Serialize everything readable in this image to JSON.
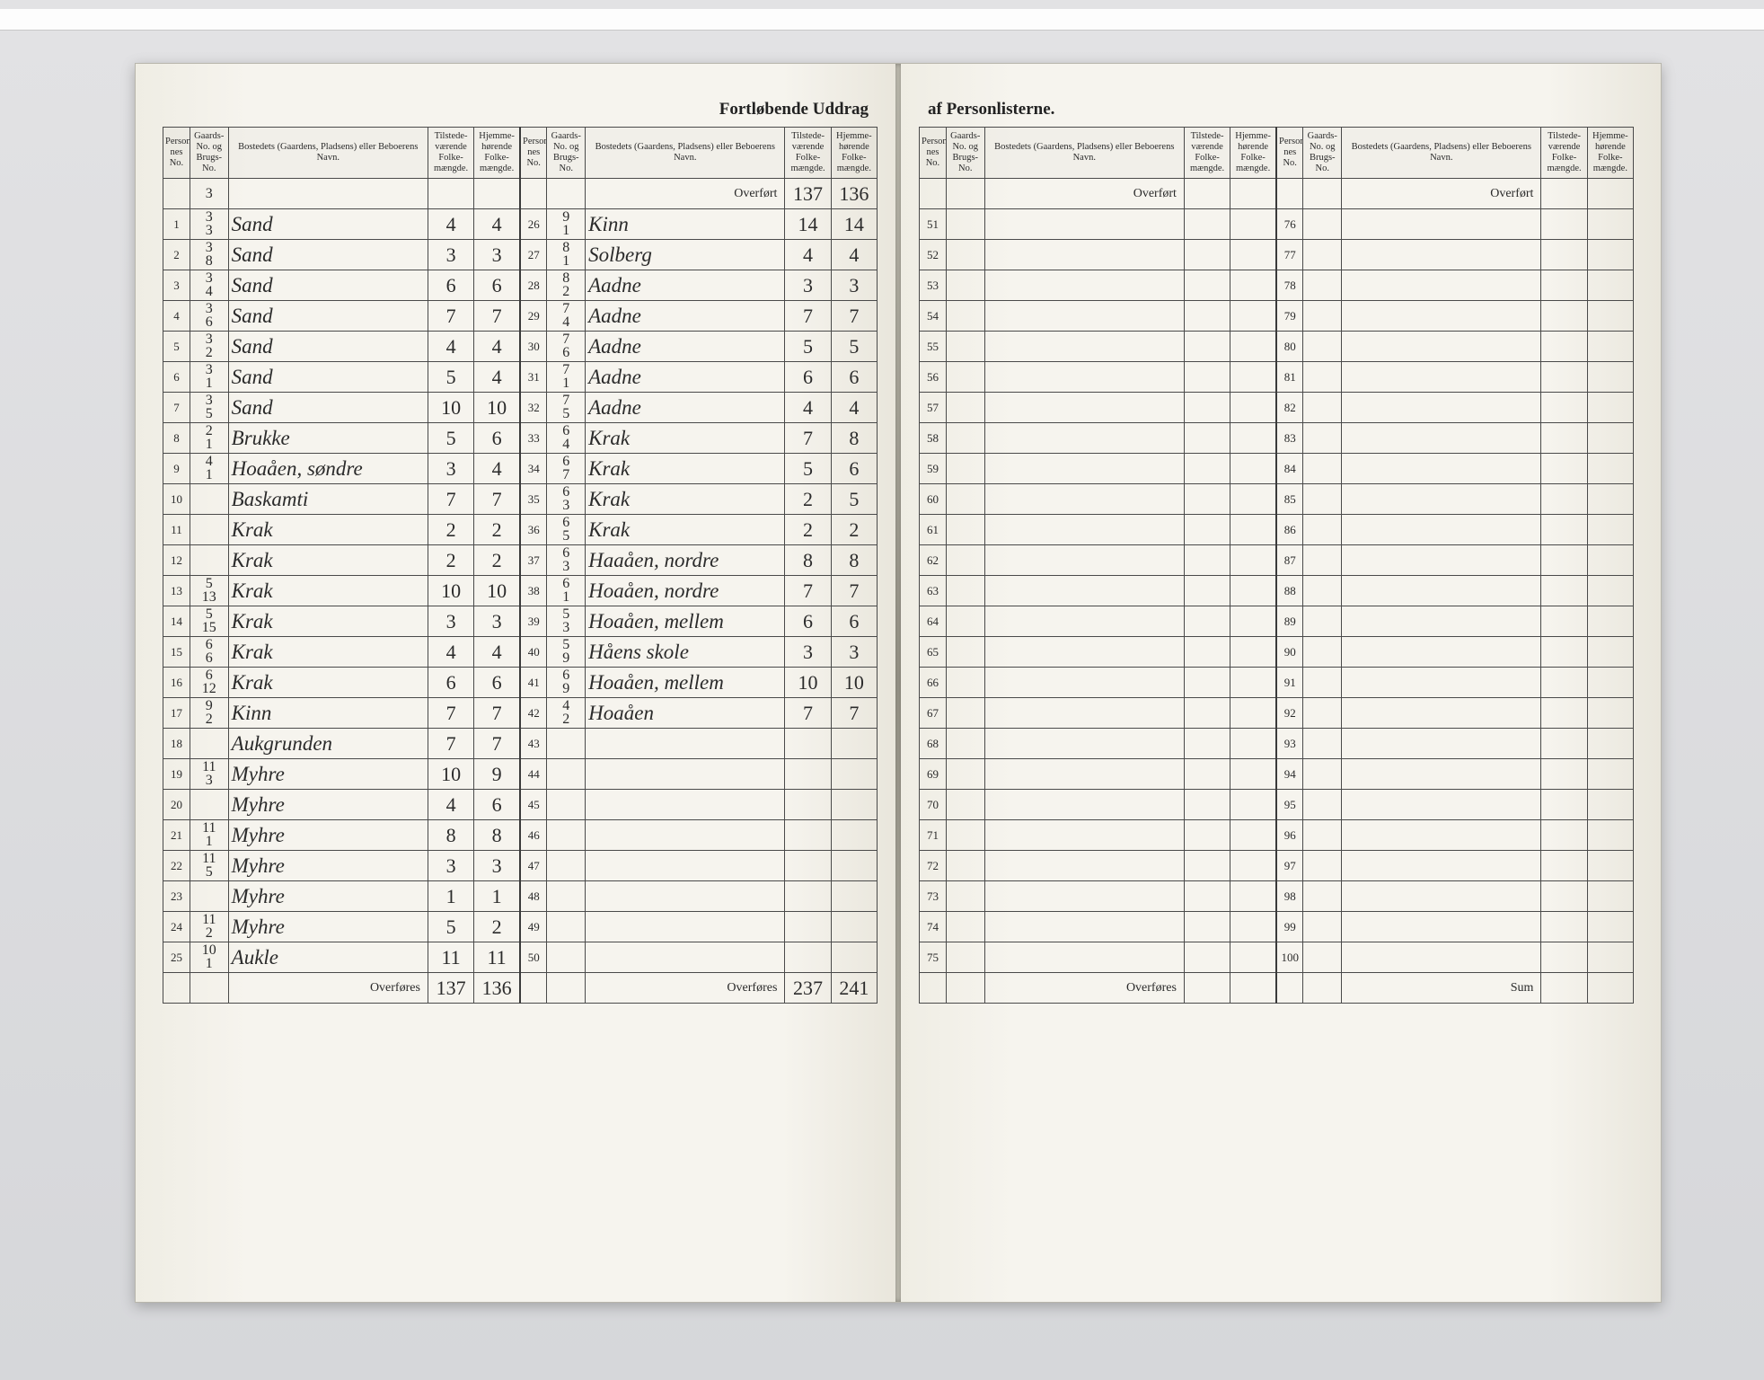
{
  "title_left": "Fortløbende Uddrag",
  "title_right": "af Personlisterne.",
  "headers": {
    "idx": "Personliste-\nnes No.",
    "gno": "Gaards-\nNo.\nog\nBrugs-\nNo.",
    "name": "Bostedets (Gaardens, Pladsens) eller\nBeboerens Navn.",
    "t": "Tilstede-\nværende\nFolke-\nmængde.",
    "h": "Hjemme-\nhørende\nFolke-\nmængde."
  },
  "overfort": "Overført",
  "overfores": "Overføres",
  "sum": "Sum",
  "left_block_a": [
    {
      "i": "1",
      "g": "3/3",
      "n": "Sand",
      "t": "4",
      "h": "4"
    },
    {
      "i": "2",
      "g": "3/8",
      "n": "Sand",
      "t": "3",
      "h": "3"
    },
    {
      "i": "3",
      "g": "3/4",
      "n": "Sand",
      "t": "6",
      "h": "6"
    },
    {
      "i": "4",
      "g": "3/6",
      "n": "Sand",
      "t": "7",
      "h": "7"
    },
    {
      "i": "5",
      "g": "3/2",
      "n": "Sand",
      "t": "4",
      "h": "4"
    },
    {
      "i": "6",
      "g": "3/1",
      "n": "Sand",
      "t": "5",
      "h": "4"
    },
    {
      "i": "7",
      "g": "3/5",
      "n": "Sand",
      "t": "10",
      "h": "10"
    },
    {
      "i": "8",
      "g": "2/1",
      "n": "Brukke",
      "t": "5",
      "h": "6"
    },
    {
      "i": "9",
      "g": "4/1",
      "n": "Hoaåen, søndre",
      "t": "3",
      "h": "4"
    },
    {
      "i": "10",
      "g": "",
      "n": "Baskamti",
      "t": "7",
      "h": "7"
    },
    {
      "i": "11",
      "g": "",
      "n": "Krak",
      "t": "2",
      "h": "2"
    },
    {
      "i": "12",
      "g": "",
      "n": "Krak",
      "t": "2",
      "h": "2"
    },
    {
      "i": "13",
      "g": "5/13",
      "n": "Krak",
      "t": "10",
      "h": "10"
    },
    {
      "i": "14",
      "g": "5/15",
      "n": "Krak",
      "t": "3",
      "h": "3"
    },
    {
      "i": "15",
      "g": "6/6",
      "n": "Krak",
      "t": "4",
      "h": "4"
    },
    {
      "i": "16",
      "g": "6/12",
      "n": "Krak",
      "t": "6",
      "h": "6"
    },
    {
      "i": "17",
      "g": "9/2",
      "n": "Kinn",
      "t": "7",
      "h": "7"
    },
    {
      "i": "18",
      "g": "",
      "n": "Aukgrunden",
      "t": "7",
      "h": "7"
    },
    {
      "i": "19",
      "g": "11/3",
      "n": "Myhre",
      "t": "10",
      "h": "9"
    },
    {
      "i": "20",
      "g": "",
      "n": "Myhre",
      "t": "4",
      "h": "6"
    },
    {
      "i": "21",
      "g": "11/1",
      "n": "Myhre",
      "t": "8",
      "h": "8"
    },
    {
      "i": "22",
      "g": "11/5",
      "n": "Myhre",
      "t": "3",
      "h": "3"
    },
    {
      "i": "23",
      "g": "",
      "n": "Myhre",
      "t": "1",
      "h": "1"
    },
    {
      "i": "24",
      "g": "11/2",
      "n": "Myhre",
      "t": "5",
      "h": "2"
    },
    {
      "i": "25",
      "g": "10/1",
      "n": "Aukle",
      "t": "11",
      "h": "11"
    }
  ],
  "left_block_a_sum": {
    "t": "137",
    "h": "136"
  },
  "left_block_b_overf": {
    "t": "137",
    "h": "136"
  },
  "left_block_b": [
    {
      "i": "26",
      "g": "9/1",
      "n": "Kinn",
      "t": "14",
      "h": "14"
    },
    {
      "i": "27",
      "g": "8/1",
      "n": "Solberg",
      "t": "4",
      "h": "4"
    },
    {
      "i": "28",
      "g": "8/2",
      "n": "Aadne",
      "t": "3",
      "h": "3"
    },
    {
      "i": "29",
      "g": "7/4",
      "n": "Aadne",
      "t": "7",
      "h": "7"
    },
    {
      "i": "30",
      "g": "7/6",
      "n": "Aadne",
      "t": "5",
      "h": "5"
    },
    {
      "i": "31",
      "g": "7/1",
      "n": "Aadne",
      "t": "6",
      "h": "6"
    },
    {
      "i": "32",
      "g": "7/5",
      "n": "Aadne",
      "t": "4",
      "h": "4"
    },
    {
      "i": "33",
      "g": "6/4",
      "n": "Krak",
      "t": "7",
      "h": "8"
    },
    {
      "i": "34",
      "g": "6/7",
      "n": "Krak",
      "t": "5",
      "h": "6"
    },
    {
      "i": "35",
      "g": "6/3",
      "n": "Krak",
      "t": "2",
      "h": "5"
    },
    {
      "i": "36",
      "g": "6/5",
      "n": "Krak",
      "t": "2",
      "h": "2"
    },
    {
      "i": "37",
      "g": "6/3",
      "n": "Haaåen, nordre",
      "t": "8",
      "h": "8"
    },
    {
      "i": "38",
      "g": "6/1",
      "n": "Hoaåen, nordre",
      "t": "7",
      "h": "7"
    },
    {
      "i": "39",
      "g": "5/3",
      "n": "Hoaåen, mellem",
      "t": "6",
      "h": "6"
    },
    {
      "i": "40",
      "g": "5/9",
      "n": "Håens skole",
      "t": "3",
      "h": "3"
    },
    {
      "i": "41",
      "g": "6/9",
      "n": "Hoaåen, mellem",
      "t": "10",
      "h": "10"
    },
    {
      "i": "42",
      "g": "4/2",
      "n": "Hoaåen",
      "t": "7",
      "h": "7"
    },
    {
      "i": "43",
      "g": "",
      "n": "",
      "t": "",
      "h": ""
    },
    {
      "i": "44",
      "g": "",
      "n": "",
      "t": "",
      "h": ""
    },
    {
      "i": "45",
      "g": "",
      "n": "",
      "t": "",
      "h": ""
    },
    {
      "i": "46",
      "g": "",
      "n": "",
      "t": "",
      "h": ""
    },
    {
      "i": "47",
      "g": "",
      "n": "",
      "t": "",
      "h": ""
    },
    {
      "i": "48",
      "g": "",
      "n": "",
      "t": "",
      "h": ""
    },
    {
      "i": "49",
      "g": "",
      "n": "",
      "t": "",
      "h": ""
    },
    {
      "i": "50",
      "g": "",
      "n": "",
      "t": "",
      "h": ""
    }
  ],
  "left_block_b_sum": {
    "t": "237",
    "h": "241"
  },
  "right_block_c": [
    {
      "i": "51"
    },
    {
      "i": "52"
    },
    {
      "i": "53"
    },
    {
      "i": "54"
    },
    {
      "i": "55"
    },
    {
      "i": "56"
    },
    {
      "i": "57"
    },
    {
      "i": "58"
    },
    {
      "i": "59"
    },
    {
      "i": "60"
    },
    {
      "i": "61"
    },
    {
      "i": "62"
    },
    {
      "i": "63"
    },
    {
      "i": "64"
    },
    {
      "i": "65"
    },
    {
      "i": "66"
    },
    {
      "i": "67"
    },
    {
      "i": "68"
    },
    {
      "i": "69"
    },
    {
      "i": "70"
    },
    {
      "i": "71"
    },
    {
      "i": "72"
    },
    {
      "i": "73"
    },
    {
      "i": "74"
    },
    {
      "i": "75"
    }
  ],
  "right_block_d": [
    {
      "i": "76"
    },
    {
      "i": "77"
    },
    {
      "i": "78"
    },
    {
      "i": "79"
    },
    {
      "i": "80"
    },
    {
      "i": "81"
    },
    {
      "i": "82"
    },
    {
      "i": "83"
    },
    {
      "i": "84"
    },
    {
      "i": "85"
    },
    {
      "i": "86"
    },
    {
      "i": "87"
    },
    {
      "i": "88"
    },
    {
      "i": "89"
    },
    {
      "i": "90"
    },
    {
      "i": "91"
    },
    {
      "i": "92"
    },
    {
      "i": "93"
    },
    {
      "i": "94"
    },
    {
      "i": "95"
    },
    {
      "i": "96"
    },
    {
      "i": "97"
    },
    {
      "i": "98"
    },
    {
      "i": "99"
    },
    {
      "i": "100"
    }
  ],
  "colors": {
    "paper": "#f4f3ee",
    "ink": "#2a2a2a",
    "rule": "#4a4a4a",
    "desk": "#dedfe1"
  }
}
